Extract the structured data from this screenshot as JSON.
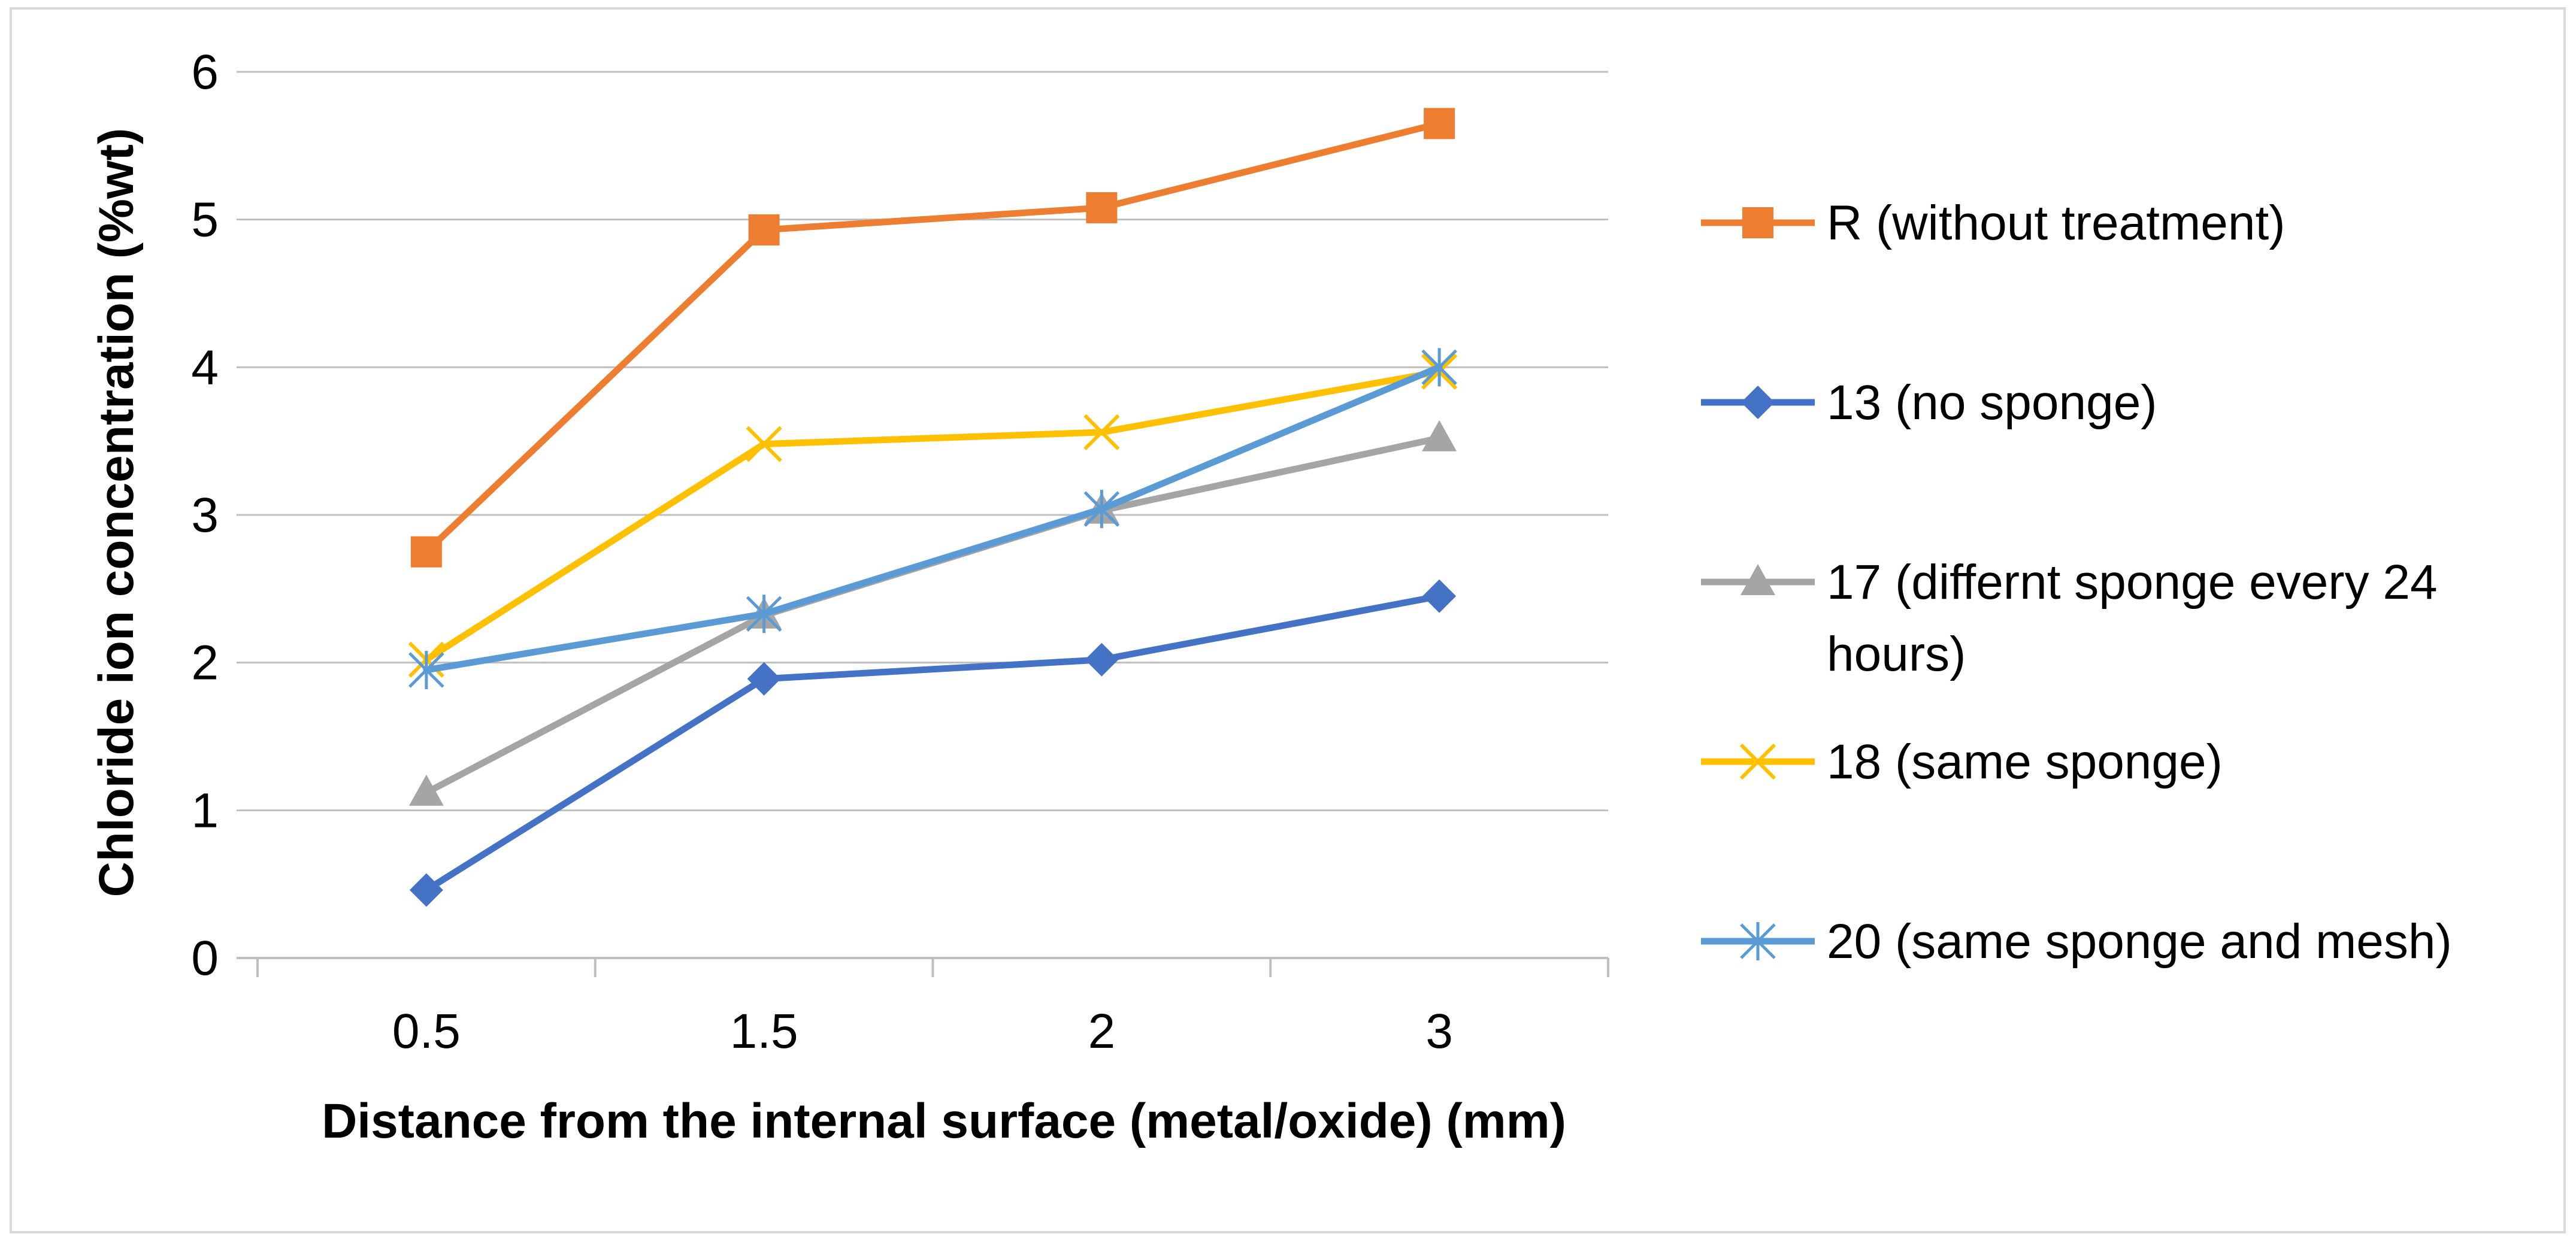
{
  "chart_data": {
    "type": "line",
    "title": "",
    "xlabel": "Distance from the internal surface (metal/oxide) (mm)",
    "ylabel": "Chloride ion concentration (%wt)",
    "categories": [
      "0.5",
      "1.5",
      "2",
      "3"
    ],
    "ylim": [
      0,
      6
    ],
    "yticks": [
      "0",
      "1",
      "2",
      "3",
      "4",
      "5",
      "6"
    ],
    "grid": "horizontal",
    "legend_position": "right",
    "series": [
      {
        "name": "R (without treatment)",
        "legend_lines": [
          "R (without treatment)"
        ],
        "values": [
          2.75,
          4.93,
          5.08,
          5.65
        ],
        "color": "#ED7D31",
        "marker": "square"
      },
      {
        "name": "13 (no sponge)",
        "legend_lines": [
          "13 (no sponge)"
        ],
        "values": [
          0.46,
          1.89,
          2.02,
          2.45
        ],
        "color": "#4472C4",
        "marker": "diamond"
      },
      {
        "name": "17 (differnt sponge every 24 hours)",
        "legend_lines": [
          "17 (differnt sponge every 24",
          "hours)"
        ],
        "values": [
          1.12,
          2.32,
          3.03,
          3.52
        ],
        "color": "#A5A5A5",
        "marker": "triangle"
      },
      {
        "name": "18 (same sponge)",
        "legend_lines": [
          "18 (same sponge)"
        ],
        "values": [
          2.02,
          3.48,
          3.56,
          3.97
        ],
        "color": "#FFC000",
        "marker": "x"
      },
      {
        "name": "20 (same sponge and mesh)",
        "legend_lines": [
          "20 (same sponge and mesh)"
        ],
        "values": [
          1.95,
          2.33,
          3.04,
          4.0
        ],
        "color": "#5B9BD5",
        "marker": "star"
      }
    ]
  }
}
